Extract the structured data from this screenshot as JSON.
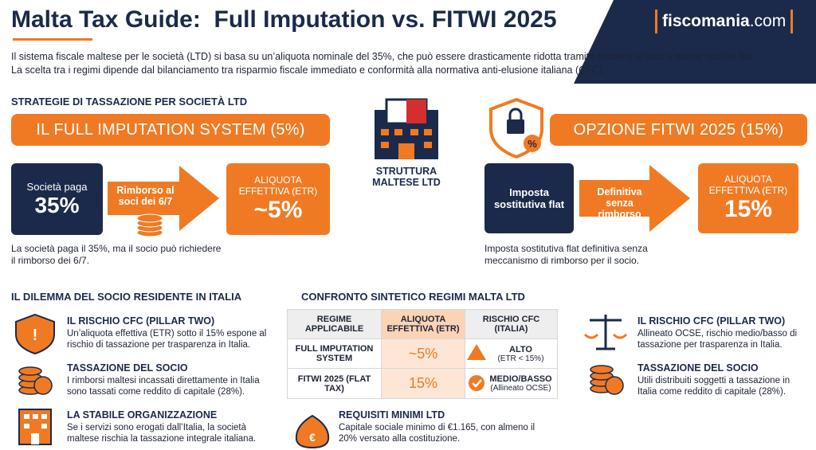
{
  "header": {
    "title": "Malta Tax Guide:  Full Imputation vs. FITWI 2025",
    "logo": "fiscomania",
    "logo_suffix": ".com",
    "intro": "Il sistema fiscale maltese per le società (LTD) si basa su un’aliquota nominale del 35%, che può essere drasticamente ridotta tramite rimborsi ai soci o nuove opzioni flat. La scelta tra i regimi dipende dal bilanciamento tra risparmio fiscale immediato e conformità alla normativa anti-elusione italiana (CFC)."
  },
  "strategies": {
    "heading": "STRATEGIE DI TASSAZIONE PER SOCIETÀ LTD",
    "center_label": "STRUTTURA MALTESE LTD",
    "full": {
      "title": "IL FULL IMPUTATION SYSTEM (5%)",
      "box_label": "Società paga",
      "box_value": "35%",
      "arrow": "Rimborso al soci dei 6/7",
      "result_label": "ALIQUOTA EFFETTIVA (ETR)",
      "result_value": "~5%",
      "note": "La società paga il 35%, ma il socio può richiedere il rimborso dei 6/7."
    },
    "fitwi": {
      "title": "OPZIONE FITWI 2025 (15%)",
      "box_label": "Imposta sostitutiva flat",
      "arrow": "Definitiva senza rimborso",
      "result_label": "ALIQUOTA EFFETTIVA (ETR)",
      "result_value": "15%",
      "note": "Imposta sostitutiva flat definitiva senza meccanismo di rimborso per il socio."
    }
  },
  "dilemma": {
    "heading": "IL DILEMMA DEL SOCIO RESIDENTE IN ITALIA",
    "items": [
      {
        "title": "IL RISCHIO CFC (PILLAR TWO)",
        "text": "Un’aliquota effettiva (ETR) sotto il 15% espone al rischio di tassazione per trasparenza in Italia."
      },
      {
        "title": "TASSAZIONE DEL SOCIO",
        "text": "I rimborsi maltesi incassati direttamente in Italia sono tassati come reddito di capitale (28%)."
      },
      {
        "title": "LA STABILE ORGANIZZAZIONE",
        "text": "Se i servizi sono erogati dall’Italia, la società maltese rischia la tassazione integrale italiana."
      }
    ]
  },
  "comparison": {
    "heading": "CONFRONTO SINTETICO REGIMI MALTA LTD",
    "columns": [
      "REGIME APPLICABILE",
      "ALIQUOTA EFFETTIVA (ETR)",
      "RISCHIO CFC (ITALIA)"
    ],
    "rows": [
      [
        "FULL IMPUTATION SYSTEM",
        "~5%",
        "ALTO",
        "(ETR < 15%)"
      ],
      [
        "FITWI 2025 (FLAT TAX)",
        "15%",
        "MEDIO/BASSO",
        "(Allineato OCSE)"
      ]
    ]
  },
  "requirements": {
    "title": "REQUISITI MINIMI LTD",
    "text": "Capitale sociale minimo di €1.165, con almeno il 20% versato alla costituzione."
  },
  "right_items": [
    {
      "title": "IL RISCHIO CFC (PILLAR TWO)",
      "text": "Allineato OCSE, rischio medio/basso di tassazione per trasparenza in Italia."
    },
    {
      "title": "TASSAZIONE DEL SOCIO",
      "text": "Utili distribuiti soggetti a tassazione in Italia come reddito di capitale (28%)."
    }
  ]
}
